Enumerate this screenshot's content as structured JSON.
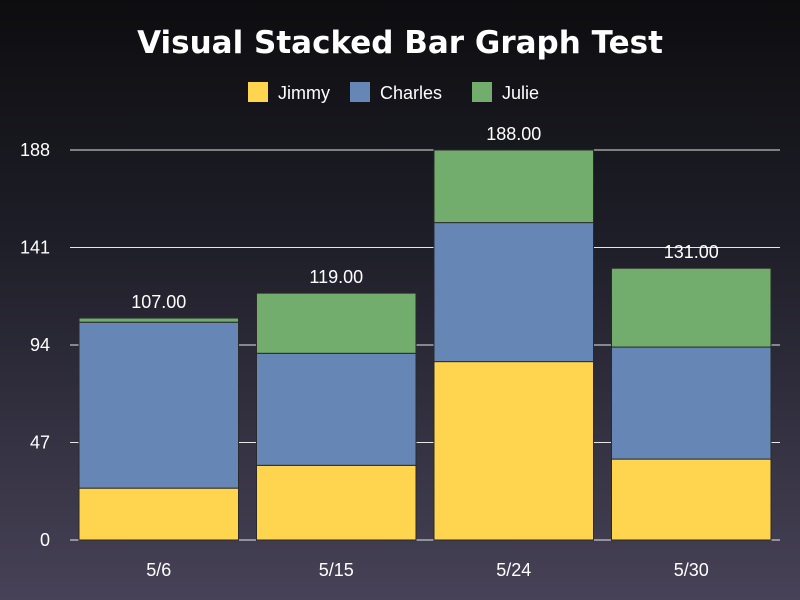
{
  "chart_data": {
    "type": "bar",
    "stacked": true,
    "title": "Visual Stacked Bar Graph Test",
    "xlabel": "",
    "ylabel": "",
    "categories": [
      "5/6",
      "5/15",
      "5/24",
      "5/30"
    ],
    "series": [
      {
        "name": "Jimmy",
        "color": "#ffd54f",
        "values": [
          25,
          36,
          86,
          39
        ]
      },
      {
        "name": "Charles",
        "color": "#6687b6",
        "values": [
          80,
          54,
          67,
          54
        ]
      },
      {
        "name": "Julie",
        "color": "#72ad6d",
        "values": [
          2,
          29,
          35,
          38
        ]
      }
    ],
    "totals": [
      "107.00",
      "119.00",
      "188.00",
      "131.00"
    ],
    "ylim": [
      0,
      188
    ],
    "yticks": [
      "0",
      "47",
      "94",
      "141",
      "188"
    ],
    "ytick_values": [
      0,
      47,
      94,
      141,
      188
    ],
    "grid": true,
    "legend_position": "top-center"
  }
}
